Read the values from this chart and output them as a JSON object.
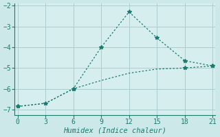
{
  "xlabel": "Humidex (Indice chaleur)",
  "background_color": "#cce8e8",
  "plot_bg_color": "#d6eeee",
  "line_color": "#1a7a6e",
  "spine_color": "#1a7a6e",
  "line1_x": [
    0,
    3,
    6,
    9,
    12,
    15,
    18,
    21
  ],
  "line1_y": [
    -6.85,
    -6.7,
    -6.0,
    -4.0,
    -2.3,
    -3.55,
    -4.65,
    -4.9
  ],
  "line2_x": [
    0,
    3,
    6,
    9,
    12,
    15,
    18,
    21
  ],
  "line2_y": [
    -6.85,
    -6.7,
    -6.0,
    -5.6,
    -5.25,
    -5.05,
    -5.0,
    -4.9
  ],
  "xlim": [
    0,
    21
  ],
  "ylim": [
    -7.25,
    -1.9
  ],
  "xticks": [
    0,
    3,
    6,
    9,
    12,
    15,
    18,
    21
  ],
  "yticks": [
    -7,
    -6,
    -5,
    -4,
    -3,
    -2
  ],
  "grid_color": "#aacccc",
  "marker": "*",
  "marker_size": 4,
  "tick_fontsize": 7,
  "xlabel_fontsize": 7.5
}
